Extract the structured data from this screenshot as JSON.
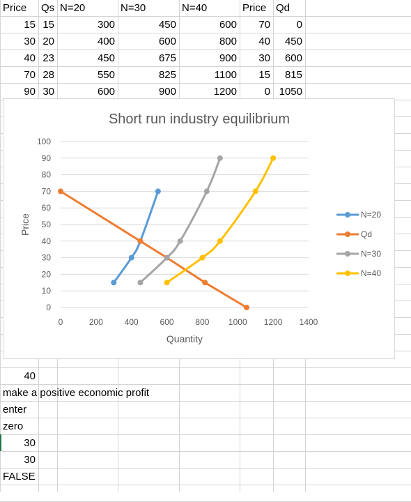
{
  "sheet": {
    "header_row": [
      "Price",
      "Qs",
      "N=20",
      "N=30",
      "N=40",
      "Price",
      "Qd"
    ],
    "rows": [
      [
        "15",
        "15",
        "300",
        "450",
        "600",
        "70",
        "0"
      ],
      [
        "30",
        "20",
        "400",
        "600",
        "800",
        "40",
        "450"
      ],
      [
        "40",
        "23",
        "450",
        "675",
        "900",
        "30",
        "600"
      ],
      [
        "70",
        "28",
        "550",
        "825",
        "1100",
        "15",
        "815"
      ],
      [
        "90",
        "30",
        "600",
        "900",
        "1200",
        "0",
        "1050"
      ]
    ],
    "lower_cells": [
      {
        "text": "40",
        "align": "right"
      },
      {
        "text": "make a positive economic profit",
        "align": "left"
      },
      {
        "text": "enter",
        "align": "left"
      },
      {
        "text": "zero",
        "align": "left"
      },
      {
        "text": "30",
        "align": "right"
      },
      {
        "text": "30",
        "align": "right"
      },
      {
        "text": "FALSE",
        "align": "left"
      }
    ]
  },
  "chart_data": {
    "type": "scatter",
    "title": "Short run industry equilibrium",
    "xlabel": "Quantity",
    "ylabel": "Price",
    "xlim": [
      0,
      1400
    ],
    "ylim": [
      0,
      100
    ],
    "xticks": [
      0,
      200,
      400,
      600,
      800,
      1000,
      1200,
      1400
    ],
    "yticks": [
      0,
      10,
      20,
      30,
      40,
      50,
      60,
      70,
      80,
      90,
      100
    ],
    "grid": true,
    "legend_position": "right",
    "series": [
      {
        "name": "N=20",
        "color": "#5b9bd5",
        "points": [
          [
            300,
            15
          ],
          [
            400,
            30
          ],
          [
            450,
            40
          ],
          [
            550,
            70
          ]
        ]
      },
      {
        "name": "Qd",
        "color": "#ed7d31",
        "points": [
          [
            0,
            70
          ],
          [
            450,
            40
          ],
          [
            600,
            30
          ],
          [
            815,
            15
          ],
          [
            1050,
            0
          ]
        ]
      },
      {
        "name": "N=30",
        "color": "#a5a5a5",
        "points": [
          [
            450,
            15
          ],
          [
            600,
            30
          ],
          [
            675,
            40
          ],
          [
            825,
            70
          ],
          [
            900,
            90
          ]
        ]
      },
      {
        "name": "N=40",
        "color": "#ffc000",
        "points": [
          [
            600,
            15
          ],
          [
            800,
            30
          ],
          [
            900,
            40
          ],
          [
            1100,
            70
          ],
          [
            1200,
            90
          ]
        ]
      }
    ]
  }
}
